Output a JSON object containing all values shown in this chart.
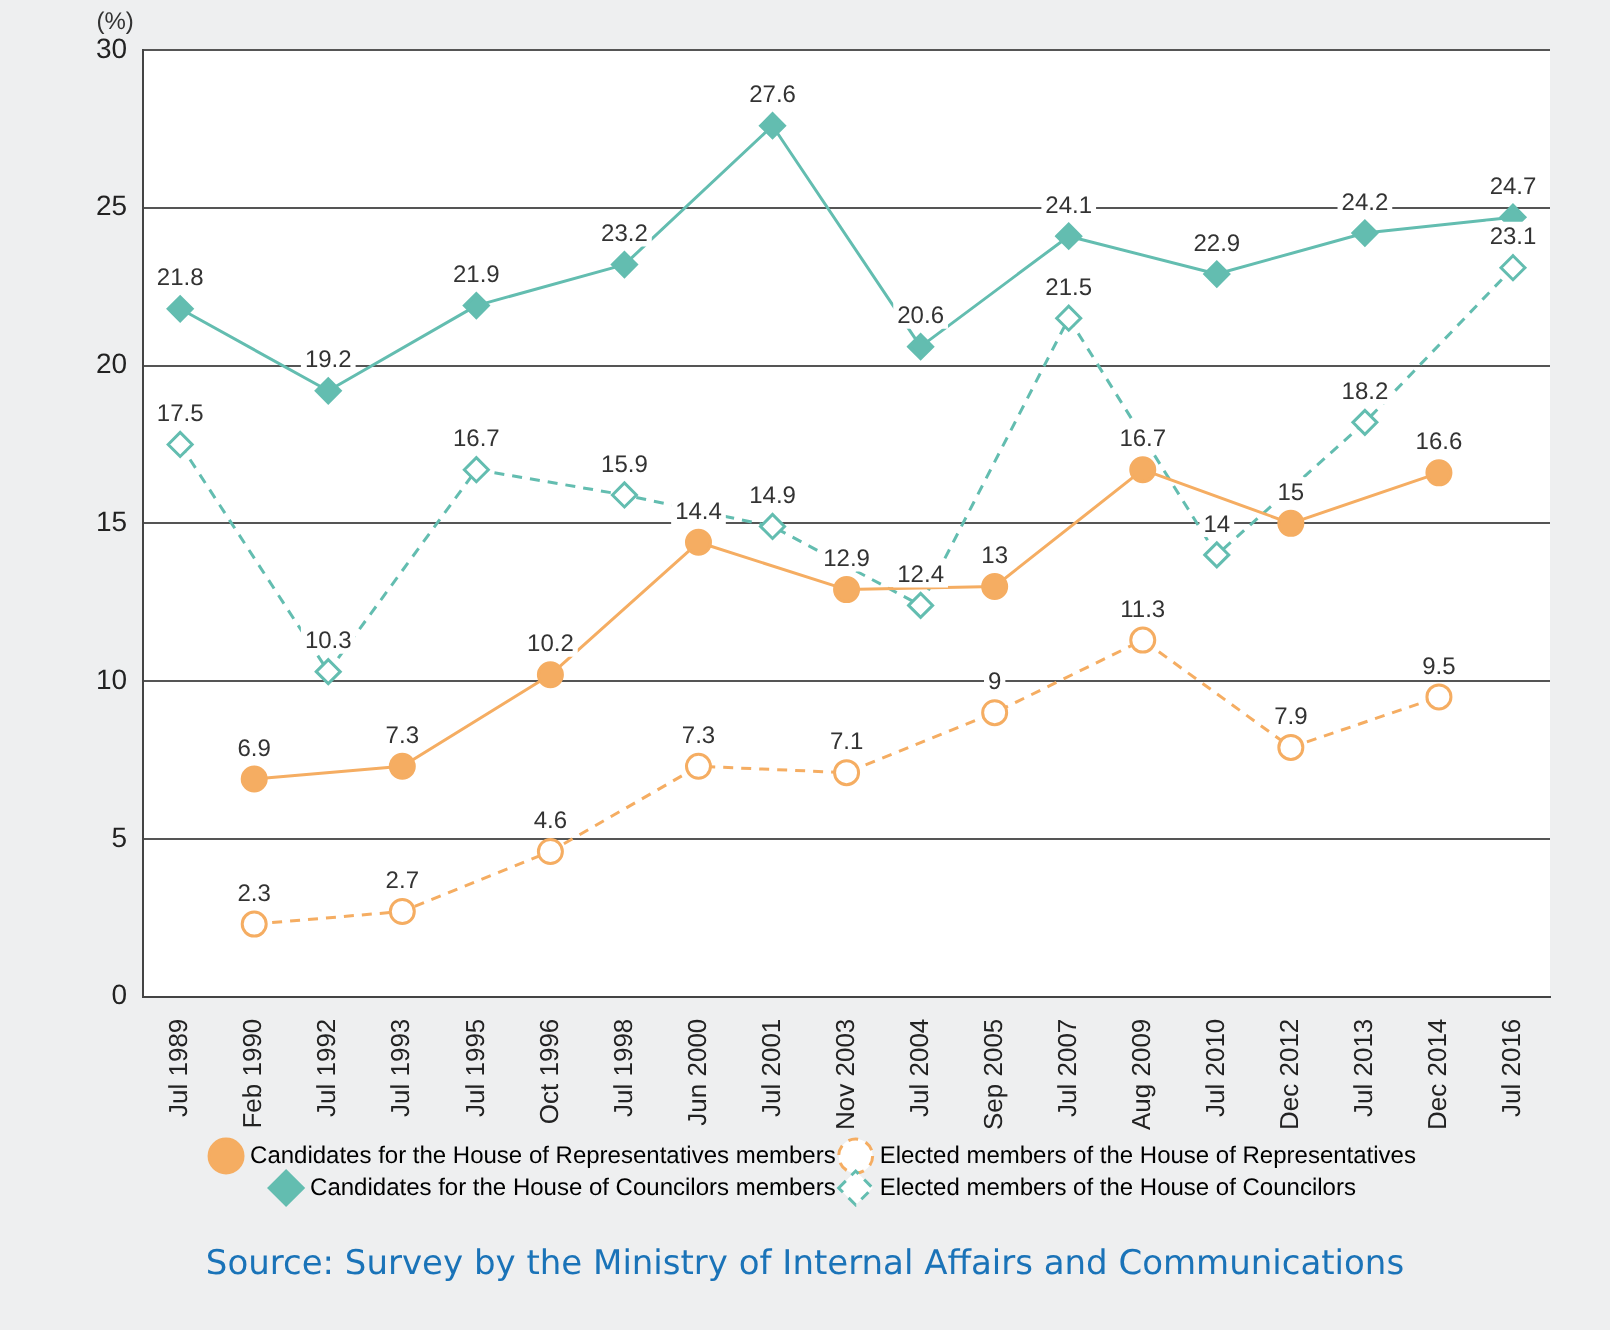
{
  "chart_data": {
    "type": "line",
    "ylabel": "(%)",
    "categories": [
      "Jul 1989",
      "Feb 1990",
      "Jul 1992",
      "Jul 1993",
      "Jul 1995",
      "Oct 1996",
      "Jul 1998",
      "Jun 2000",
      "Jul 2001",
      "Nov 2003",
      "Jul 2004",
      "Sep 2005",
      "Jul 2007",
      "Aug 2009",
      "Jul 2010",
      "Dec 2012",
      "Jul 2013",
      "Dec 2014",
      "Jul 2016"
    ],
    "series": [
      {
        "name": "Candidates for the House of Representatives members",
        "color": "#f5ad62",
        "marker": "circle",
        "line_style": "solid",
        "values": [
          null,
          6.9,
          null,
          7.3,
          null,
          10.2,
          null,
          14.4,
          null,
          12.9,
          null,
          13,
          null,
          16.7,
          null,
          15,
          null,
          16.6,
          null
        ]
      },
      {
        "name": "Elected members of the House of Representatives",
        "color": "#f5ad62",
        "marker": "circle",
        "line_style": "dashed",
        "values": [
          null,
          2.3,
          null,
          2.7,
          null,
          4.6,
          null,
          7.3,
          null,
          7.1,
          null,
          9,
          null,
          11.3,
          null,
          7.9,
          null,
          9.5,
          null
        ]
      },
      {
        "name": "Candidates for the House of Councilors members",
        "color": "#63bdb0",
        "marker": "diamond",
        "line_style": "solid",
        "values": [
          21.8,
          null,
          19.2,
          null,
          21.9,
          null,
          23.2,
          null,
          27.6,
          null,
          20.6,
          null,
          24.1,
          null,
          22.9,
          null,
          24.2,
          null,
          24.7
        ]
      },
      {
        "name": "Elected members of the House of Councilors",
        "color": "#63bdb0",
        "marker": "diamond",
        "line_style": "dashed",
        "values": [
          17.5,
          null,
          10.3,
          null,
          16.7,
          null,
          15.9,
          null,
          14.9,
          null,
          12.4,
          null,
          21.5,
          null,
          14,
          null,
          18.2,
          null,
          23.1
        ]
      }
    ],
    "ylim": [
      0,
      30
    ],
    "yticks": [
      0,
      5,
      10,
      15,
      20,
      25,
      30
    ],
    "grid": "y",
    "legend": "bottom",
    "data_labels": true,
    "annotations": [
      "Source: Survey by the Ministry of Internal Affairs and Communications"
    ]
  }
}
